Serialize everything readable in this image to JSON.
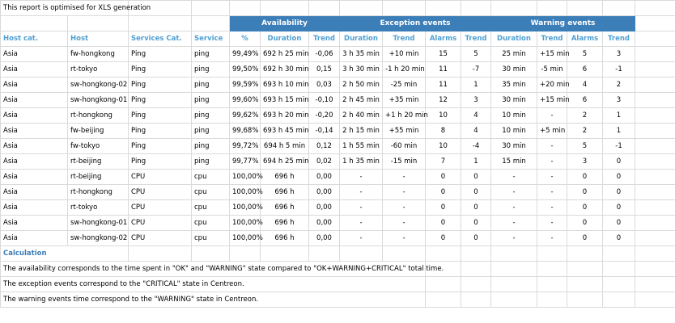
{
  "header": {
    "note": "This report is optimised for XLS generation"
  },
  "table": {
    "groups": [
      "Availability",
      "Exception events",
      "Warning events"
    ],
    "columns": [
      "Host cat.",
      "Host",
      "Services Cat.",
      "Service",
      "%",
      "Duration",
      "Trend",
      "Duration",
      "Trend",
      "Alarms",
      "Trend",
      "Duration",
      "Trend",
      "Alarms",
      "Trend"
    ],
    "rows": [
      [
        "Asia",
        "fw-hongkong",
        "Ping",
        "ping",
        "99,49%",
        "692 h 25 min",
        "-0,06",
        "3 h 35 min",
        "+10 min",
        "15",
        "5",
        "25 min",
        "+15 min",
        "5",
        "3"
      ],
      [
        "Asia",
        "rt-tokyo",
        "Ping",
        "ping",
        "99,50%",
        "692 h 30 min",
        "0,15",
        "3 h 30 min",
        "-1 h 20 min",
        "11",
        "-7",
        "30 min",
        "-5 min",
        "6",
        "-1"
      ],
      [
        "Asia",
        "sw-hongkong-02",
        "Ping",
        "ping",
        "99,59%",
        "693 h 10 min",
        "0,03",
        "2 h 50 min",
        "-25 min",
        "11",
        "1",
        "35 min",
        "+20 min",
        "4",
        "2"
      ],
      [
        "Asia",
        "sw-hongkong-01",
        "Ping",
        "ping",
        "99,60%",
        "693 h 15 min",
        "-0,10",
        "2 h 45 min",
        "+35 min",
        "12",
        "3",
        "30 min",
        "+15 min",
        "6",
        "3"
      ],
      [
        "Asia",
        "rt-hongkong",
        "Ping",
        "ping",
        "99,62%",
        "693 h 20 min",
        "-0,20",
        "2 h 40 min",
        "+1 h 20 min",
        "10",
        "4",
        "10 min",
        "-",
        "2",
        "1"
      ],
      [
        "Asia",
        "fw-beijing",
        "Ping",
        "ping",
        "99,68%",
        "693 h 45 min",
        "-0,14",
        "2 h 15 min",
        "+55 min",
        "8",
        "4",
        "10 min",
        "+5 min",
        "2",
        "1"
      ],
      [
        "Asia",
        "fw-tokyo",
        "Ping",
        "ping",
        "99,72%",
        "694 h 5 min",
        "0,12",
        "1 h 55 min",
        "-60 min",
        "10",
        "-4",
        "30 min",
        "-",
        "5",
        "-1"
      ],
      [
        "Asia",
        "rt-beijing",
        "Ping",
        "ping",
        "99,77%",
        "694 h 25 min",
        "0,02",
        "1 h 35 min",
        "-15 min",
        "7",
        "1",
        "15 min",
        "-",
        "3",
        "0"
      ],
      [
        "Asia",
        "rt-beijing",
        "CPU",
        "cpu",
        "100,00%",
        "696 h",
        "0,00",
        "-",
        "-",
        "0",
        "0",
        "-",
        "-",
        "0",
        "0"
      ],
      [
        "Asia",
        "rt-hongkong",
        "CPU",
        "cpu",
        "100,00%",
        "696 h",
        "0,00",
        "-",
        "-",
        "0",
        "0",
        "-",
        "-",
        "0",
        "0"
      ],
      [
        "Asia",
        "rt-tokyo",
        "CPU",
        "cpu",
        "100,00%",
        "696 h",
        "0,00",
        "-",
        "-",
        "0",
        "0",
        "-",
        "-",
        "0",
        "0"
      ],
      [
        "Asia",
        "sw-hongkong-01",
        "CPU",
        "cpu",
        "100,00%",
        "696 h",
        "0,00",
        "-",
        "-",
        "0",
        "0",
        "-",
        "-",
        "0",
        "0"
      ],
      [
        "Asia",
        "sw-hongkong-02",
        "CPU",
        "cpu",
        "100,00%",
        "696 h",
        "0,00",
        "-",
        "-",
        "0",
        "0",
        "-",
        "-",
        "0",
        "0"
      ]
    ]
  },
  "calculation": {
    "title": "Calculation",
    "lines": [
      "The availability corresponds to the time spent in \"OK\" and \"WARNING\" state compared to \"OK+WARNING+CRITICAL\" total time.",
      "The exception events correspond to the \"CRITICAL\" state in Centreon.",
      "The warning events time correspond to the \"WARNING\" state in Centreon."
    ]
  }
}
